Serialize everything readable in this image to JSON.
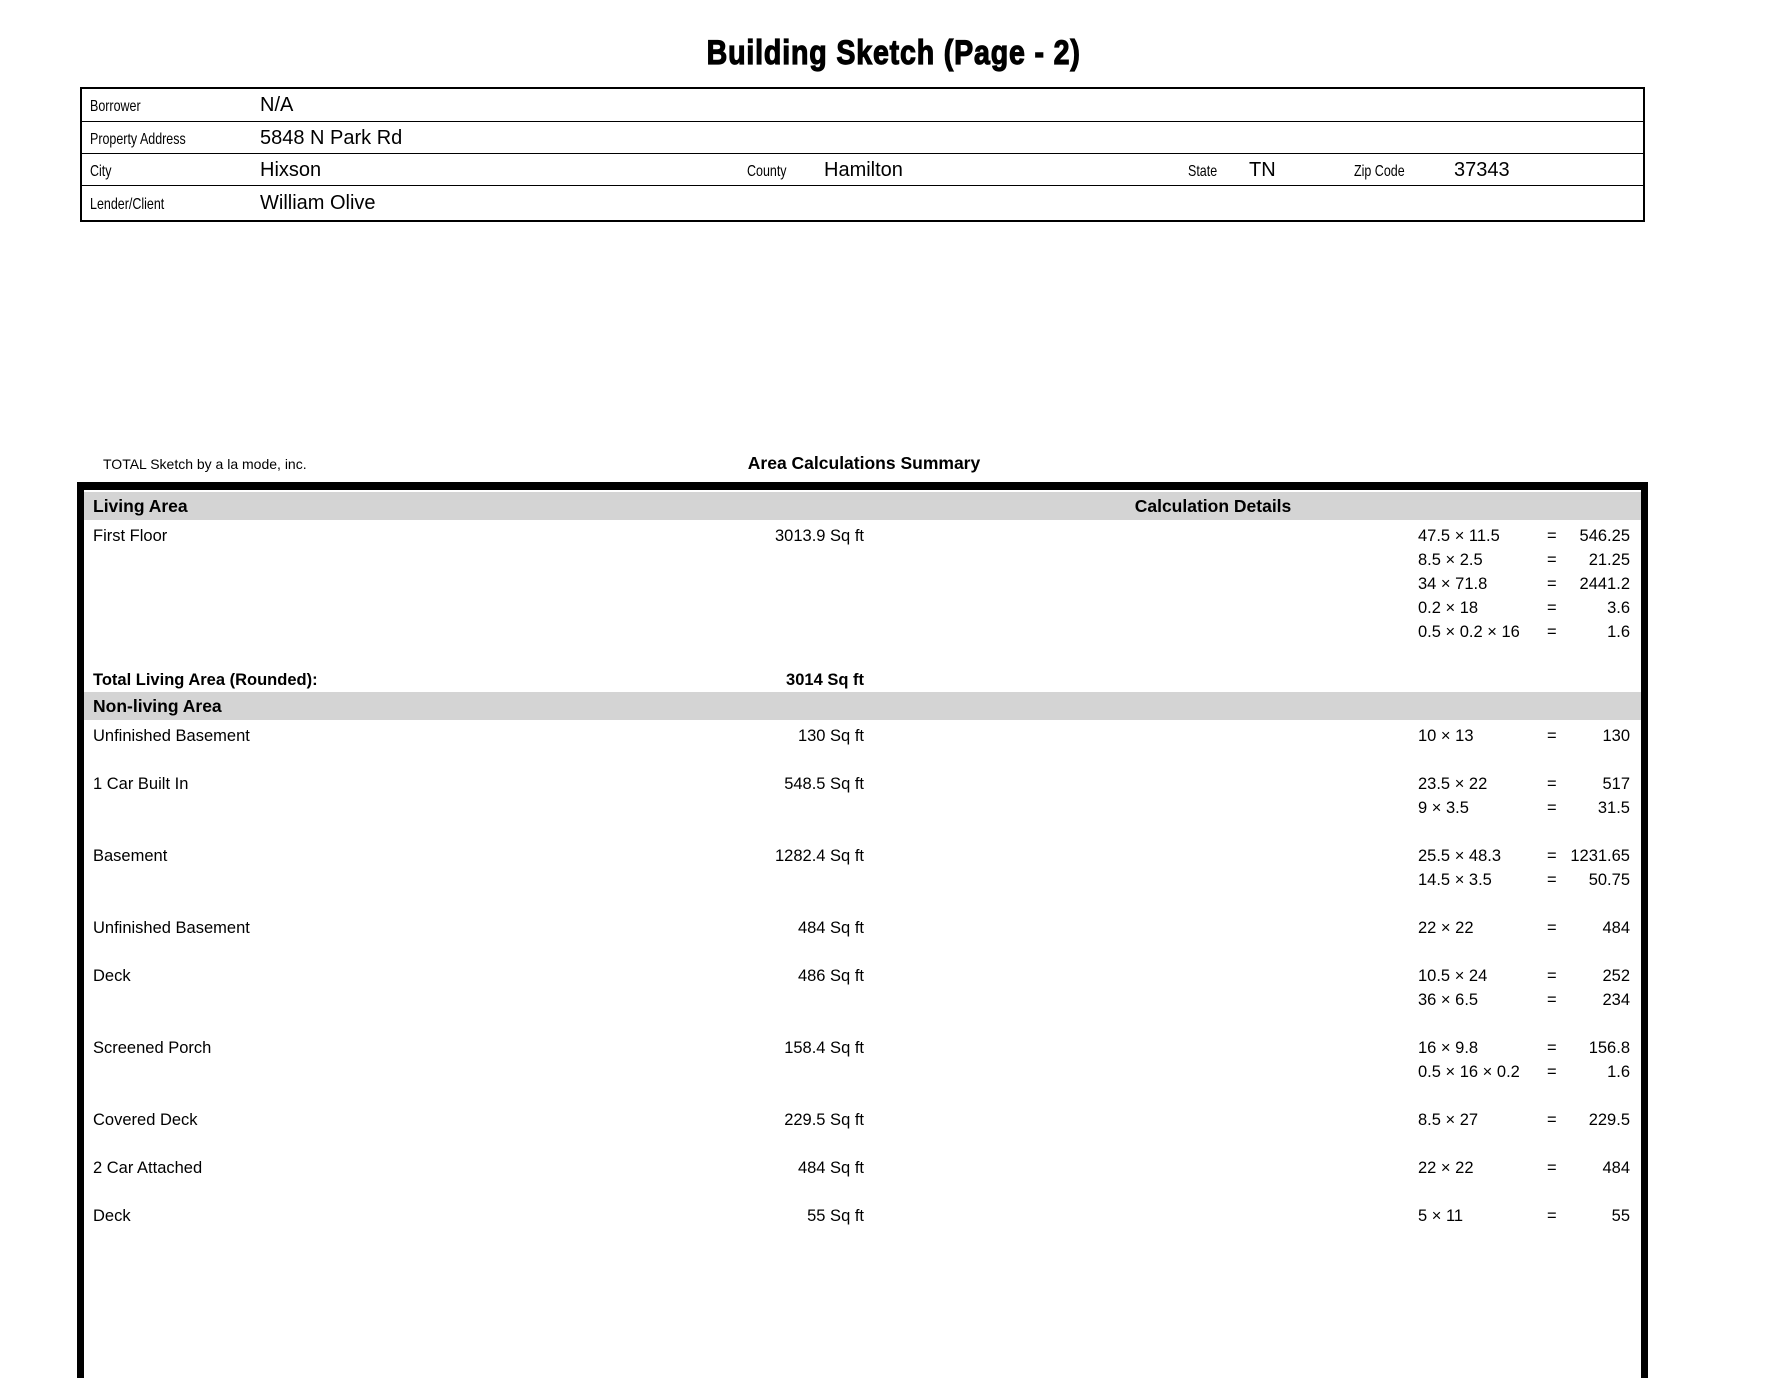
{
  "page": {
    "title": "Building Sketch (Page - 2)"
  },
  "header_form": {
    "borrower_label": "Borrower",
    "borrower": "N/A",
    "property_address_label": "Property Address",
    "property_address": "5848 N Park Rd",
    "city_label": "City",
    "city": "Hixson",
    "county_label": "County",
    "county": "Hamilton",
    "state_label": "State",
    "state": "TN",
    "zip_label": "Zip Code",
    "zip": "37343",
    "lender_label": "Lender/Client",
    "lender": "William Olive"
  },
  "branding": "TOTAL Sketch by a la mode, inc.",
  "summary": {
    "title": "Area Calculations Summary",
    "living_area_header": "Living Area",
    "calculation_details_header": "Calculation Details",
    "living_rows": [
      {
        "name": "First Floor",
        "area": "3013.9 Sq ft",
        "calcs": [
          {
            "expr": "47.5 × 11.5",
            "eq": "=",
            "result": "546.25"
          },
          {
            "expr": "8.5 × 2.5",
            "eq": "=",
            "result": "21.25"
          },
          {
            "expr": "34 × 71.8",
            "eq": "=",
            "result": "2441.2"
          },
          {
            "expr": "0.2 × 18",
            "eq": "=",
            "result": "3.6"
          },
          {
            "expr": "0.5 × 0.2 × 16",
            "eq": "=",
            "result": "1.6"
          }
        ]
      }
    ],
    "total_label": "Total Living Area (Rounded):",
    "total_value": "3014 Sq ft",
    "nonliving_area_header": "Non-living Area",
    "nonliving_rows": [
      {
        "name": "Unfinished Basement",
        "area": "130 Sq ft",
        "calcs": [
          {
            "expr": "10 × 13",
            "eq": "=",
            "result": "130"
          }
        ]
      },
      {
        "name": "1 Car Built In",
        "area": "548.5 Sq ft",
        "calcs": [
          {
            "expr": "23.5 × 22",
            "eq": "=",
            "result": "517"
          },
          {
            "expr": "9 × 3.5",
            "eq": "=",
            "result": "31.5"
          }
        ]
      },
      {
        "name": "Basement",
        "area": "1282.4 Sq ft",
        "calcs": [
          {
            "expr": "25.5 × 48.3",
            "eq": "=",
            "result": "1231.65"
          },
          {
            "expr": "14.5 × 3.5",
            "eq": "=",
            "result": "50.75"
          }
        ]
      },
      {
        "name": "Unfinished Basement",
        "area": "484 Sq ft",
        "calcs": [
          {
            "expr": "22 × 22",
            "eq": "=",
            "result": "484"
          }
        ]
      },
      {
        "name": "Deck",
        "area": "486 Sq ft",
        "calcs": [
          {
            "expr": "10.5 × 24",
            "eq": "=",
            "result": "252"
          },
          {
            "expr": "36 × 6.5",
            "eq": "=",
            "result": "234"
          }
        ]
      },
      {
        "name": "Screened Porch",
        "area": "158.4 Sq ft",
        "calcs": [
          {
            "expr": "16 × 9.8",
            "eq": "=",
            "result": "156.8"
          },
          {
            "expr": "0.5 × 16 × 0.2",
            "eq": "=",
            "result": "1.6"
          }
        ]
      },
      {
        "name": "Covered Deck",
        "area": "229.5 Sq ft",
        "calcs": [
          {
            "expr": "8.5 × 27",
            "eq": "=",
            "result": "229.5"
          }
        ]
      },
      {
        "name": "2 Car Attached",
        "area": "484 Sq ft",
        "calcs": [
          {
            "expr": "22 × 22",
            "eq": "=",
            "result": "484"
          }
        ]
      },
      {
        "name": "Deck",
        "area": "55 Sq ft",
        "calcs": [
          {
            "expr": "5 × 11",
            "eq": "=",
            "result": "55"
          }
        ]
      }
    ]
  },
  "colors": {
    "band_gray": "#d4d4d4",
    "border_black": "#000000"
  }
}
